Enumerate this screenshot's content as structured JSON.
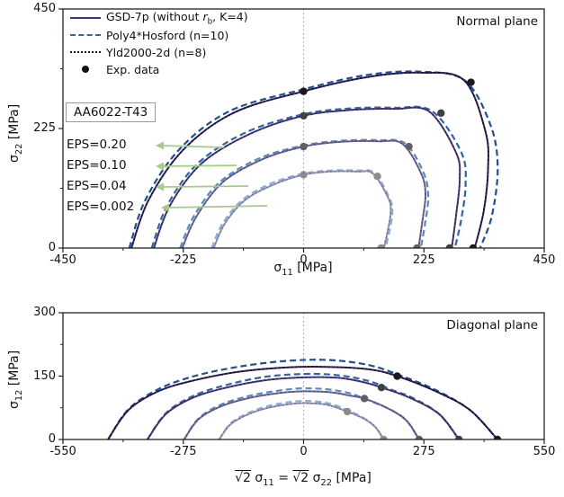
{
  "material_label": "AA6022-T43",
  "legend": {
    "gsd": {
      "pre": "GSD-7p (without ",
      "rsym": "r",
      "rsub": "b",
      "post": ", K=4)"
    },
    "poly": {
      "label": "Poly4*Hosford (n=10)"
    },
    "yld": {
      "label": "Yld2000-2d (n=8)"
    },
    "exp": {
      "label": "Exp. data"
    }
  },
  "annotations": {
    "eps_labels": [
      "EPS=0.20",
      "EPS=0.10",
      "EPS=0.04",
      "EPS=0.002"
    ],
    "normal_plane_title": "Normal plane",
    "diagonal_plane_title": "Diagonal plane"
  },
  "axis_labels": {
    "top_x": {
      "sym": "σ",
      "sub": "11",
      "unit": " [MPa]"
    },
    "top_y": {
      "sym": "σ",
      "sub": "22",
      "unit": " [MPa]"
    },
    "bot_y": {
      "sym": "σ",
      "sub": "12",
      "unit": " [MPa]"
    },
    "bot_x": {
      "sqrt1": "√2",
      "sym1": "σ",
      "sub1": "11",
      "eq": " = ",
      "sqrt2": "√2",
      "sym2": "σ",
      "sub2": "22",
      "unit": " [MPa]"
    }
  },
  "colors": {
    "solid_purple": [
      "#35206f",
      "#4a3690",
      "#6f62aa",
      "#9a93c4"
    ],
    "dashed_blue": [
      "#1d4f9c",
      "#2f65b0",
      "#548bc4",
      "#86afd9"
    ],
    "dotted_dark": [
      "#101010",
      "#2b2b33",
      "#50505e",
      "#757584"
    ],
    "exp_dot": [
      "#1a1a1a",
      "#404040",
      "#606060",
      "#8c8c8c"
    ],
    "arrow_green": "#a3cd84",
    "zero_line": "#999999",
    "frame": "#222222"
  },
  "chart_data": [
    {
      "type": "line",
      "plot": "normal_plane",
      "title": "Normal plane",
      "xlabel": "sigma_11 [MPa]",
      "ylabel": "sigma_22 [MPa]",
      "xlim": [
        -450,
        450
      ],
      "ylim": [
        0,
        450
      ],
      "xticks": [
        -450,
        -225,
        0,
        225,
        450
      ],
      "yticks": [
        0,
        225,
        450
      ],
      "xticks_minor": [
        -337.5,
        -112.5,
        112.5,
        337.5
      ],
      "yticks_minor": [
        112.5,
        337.5
      ],
      "zero_vline": true,
      "surfaces": [
        {
          "eps": "0.20",
          "solid": [
            [
              -322,
              0
            ],
            [
              -290,
              90
            ],
            [
              -225,
              185
            ],
            [
              -130,
              255
            ],
            [
              0,
              295
            ],
            [
              120,
              322
            ],
            [
              220,
              330
            ],
            [
              300,
              316
            ],
            [
              340,
              220
            ],
            [
              345,
              150
            ],
            [
              337,
              70
            ],
            [
              320,
              0
            ]
          ],
          "dashed": [
            [
              -326,
              0
            ],
            [
              -296,
              90
            ],
            [
              -233,
              185
            ],
            [
              -138,
              258
            ],
            [
              0,
              299
            ],
            [
              120,
              326
            ],
            [
              220,
              332
            ],
            [
              302,
              315
            ],
            [
              350,
              230
            ],
            [
              363,
              150
            ],
            [
              352,
              60
            ],
            [
              330,
              0
            ]
          ],
          "exp": [
            [
              0,
              295
            ],
            [
              313,
              312
            ],
            [
              317,
              0
            ]
          ]
        },
        {
          "eps": "0.10",
          "solid": [
            [
              -280,
              0
            ],
            [
              -250,
              80
            ],
            [
              -190,
              160
            ],
            [
              -100,
              215
            ],
            [
              0,
              249
            ],
            [
              90,
              260
            ],
            [
              170,
              262
            ],
            [
              235,
              257
            ],
            [
              285,
              180
            ],
            [
              292,
              130
            ],
            [
              285,
              60
            ],
            [
              277,
              0
            ]
          ],
          "dashed": [
            [
              -284,
              0
            ],
            [
              -255,
              80
            ],
            [
              -197,
              160
            ],
            [
              -107,
              218
            ],
            [
              0,
              252
            ],
            [
              90,
              263
            ],
            [
              170,
              264
            ],
            [
              240,
              258
            ],
            [
              295,
              180
            ],
            [
              303,
              120
            ],
            [
              295,
              55
            ],
            [
              283,
              0
            ]
          ],
          "exp": [
            [
              0,
              249
            ],
            [
              257,
              254
            ],
            [
              273,
              0
            ]
          ]
        },
        {
          "eps": "0.04",
          "solid": [
            [
              -227,
              0
            ],
            [
              -200,
              60
            ],
            [
              -150,
              125
            ],
            [
              -75,
              168
            ],
            [
              0,
              191
            ],
            [
              70,
              200
            ],
            [
              140,
              201
            ],
            [
              185,
              196
            ],
            [
              220,
              140
            ],
            [
              228,
              100
            ],
            [
              222,
              50
            ],
            [
              215,
              0
            ]
          ],
          "dashed": [
            [
              -231,
              0
            ],
            [
              -205,
              60
            ],
            [
              -156,
              125
            ],
            [
              -80,
              170
            ],
            [
              0,
              193
            ],
            [
              70,
              202
            ],
            [
              140,
              203
            ],
            [
              190,
              197
            ],
            [
              225,
              140
            ],
            [
              233,
              95
            ],
            [
              227,
              45
            ],
            [
              219,
              0
            ]
          ],
          "exp": [
            [
              0,
              191
            ],
            [
              197,
              191
            ],
            [
              212,
              0
            ]
          ]
        },
        {
          "eps": "0.002",
          "solid": [
            [
              -168,
              0
            ],
            [
              -148,
              45
            ],
            [
              -110,
              90
            ],
            [
              -55,
              120
            ],
            [
              0,
              138
            ],
            [
              50,
              144
            ],
            [
              100,
              144
            ],
            [
              130,
              140
            ],
            [
              158,
              95
            ],
            [
              163,
              70
            ],
            [
              158,
              35
            ],
            [
              150,
              0
            ]
          ],
          "dashed": [
            [
              -172,
              0
            ],
            [
              -152,
              45
            ],
            [
              -115,
              90
            ],
            [
              -60,
              122
            ],
            [
              0,
              140
            ],
            [
              50,
              146
            ],
            [
              100,
              146
            ],
            [
              133,
              141
            ],
            [
              161,
              93
            ],
            [
              166,
              68
            ],
            [
              161,
              33
            ],
            [
              153,
              0
            ]
          ],
          "exp": [
            [
              0,
              138
            ],
            [
              138,
              135
            ],
            [
              145,
              0
            ]
          ]
        }
      ]
    },
    {
      "type": "line",
      "plot": "diagonal_plane",
      "title": "Diagonal plane",
      "xlabel": "sqrt2*sigma_11 = sqrt2*sigma_22 [MPa]",
      "ylabel": "sigma_12 [MPa]",
      "xlim": [
        -550,
        550
      ],
      "ylim": [
        0,
        300
      ],
      "xticks": [
        -550,
        -275,
        0,
        275,
        550
      ],
      "yticks": [
        0,
        150,
        300
      ],
      "xticks_minor": [
        -412.5,
        -137.5,
        137.5,
        412.5
      ],
      "yticks_minor": [
        75,
        225
      ],
      "zero_vline": true,
      "surfaces": [
        {
          "eps": "0.20",
          "solid": [
            [
              -447,
              0
            ],
            [
              -400,
              70
            ],
            [
              -330,
              115
            ],
            [
              -250,
              140
            ],
            [
              -150,
              160
            ],
            [
              -50,
              170
            ],
            [
              50,
              172
            ],
            [
              150,
              166
            ],
            [
              214,
              150
            ],
            [
              300,
              115
            ],
            [
              380,
              70
            ],
            [
              443,
              0
            ]
          ],
          "dashed": [
            [
              -447,
              0
            ],
            [
              -400,
              72
            ],
            [
              -330,
              120
            ],
            [
              -250,
              150
            ],
            [
              -150,
              172
            ],
            [
              -40,
              186
            ],
            [
              60,
              188
            ],
            [
              150,
              176
            ],
            [
              220,
              152
            ],
            [
              300,
              118
            ],
            [
              380,
              70
            ],
            [
              443,
              0
            ]
          ],
          "exp": [
            [
              214,
              150
            ],
            [
              443,
              0
            ]
          ]
        },
        {
          "eps": "0.10",
          "solid": [
            [
              -357,
              0
            ],
            [
              -315,
              60
            ],
            [
              -255,
              98
            ],
            [
              -180,
              122
            ],
            [
              -90,
              140
            ],
            [
              0,
              147
            ],
            [
              80,
              146
            ],
            [
              140,
              135
            ],
            [
              178,
              123
            ],
            [
              240,
              100
            ],
            [
              310,
              60
            ],
            [
              355,
              0
            ]
          ],
          "dashed": [
            [
              -357,
              0
            ],
            [
              -315,
              62
            ],
            [
              -255,
              102
            ],
            [
              -180,
              128
            ],
            [
              -90,
              148
            ],
            [
              0,
              155
            ],
            [
              80,
              152
            ],
            [
              150,
              138
            ],
            [
              200,
              118
            ],
            [
              250,
              98
            ],
            [
              310,
              60
            ],
            [
              355,
              0
            ]
          ],
          "exp": [
            [
              178,
              123
            ],
            [
              355,
              0
            ]
          ]
        },
        {
          "eps": "0.04",
          "solid": [
            [
              -273,
              0
            ],
            [
              -240,
              48
            ],
            [
              -190,
              78
            ],
            [
              -125,
              98
            ],
            [
              -55,
              110
            ],
            [
              0,
              114
            ],
            [
              60,
              112
            ],
            [
              105,
              104
            ],
            [
              139,
              97
            ],
            [
              190,
              75
            ],
            [
              235,
              45
            ],
            [
              264,
              0
            ]
          ],
          "dashed": [
            [
              -273,
              0
            ],
            [
              -240,
              50
            ],
            [
              -190,
              82
            ],
            [
              -125,
              103
            ],
            [
              -55,
              116
            ],
            [
              0,
              121
            ],
            [
              60,
              118
            ],
            [
              110,
              108
            ],
            [
              150,
              92
            ],
            [
              200,
              70
            ],
            [
              235,
              45
            ],
            [
              264,
              0
            ]
          ],
          "exp": [
            [
              139,
              97
            ],
            [
              264,
              0
            ]
          ]
        },
        {
          "eps": "0.002",
          "solid": [
            [
              -193,
              0
            ],
            [
              -168,
              35
            ],
            [
              -130,
              58
            ],
            [
              -85,
              74
            ],
            [
              -30,
              84
            ],
            [
              10,
              86
            ],
            [
              55,
              82
            ],
            [
              100,
              66
            ],
            [
              140,
              48
            ],
            [
              165,
              28
            ],
            [
              183,
              0
            ]
          ],
          "dashed": [
            [
              -193,
              0
            ],
            [
              -168,
              37
            ],
            [
              -130,
              61
            ],
            [
              -85,
              78
            ],
            [
              -30,
              89
            ],
            [
              10,
              91
            ],
            [
              55,
              86
            ],
            [
              100,
              70
            ],
            [
              140,
              49
            ],
            [
              165,
              28
            ],
            [
              183,
              0
            ]
          ],
          "exp": [
            [
              100,
              66
            ],
            [
              183,
              0
            ]
          ]
        }
      ]
    }
  ]
}
